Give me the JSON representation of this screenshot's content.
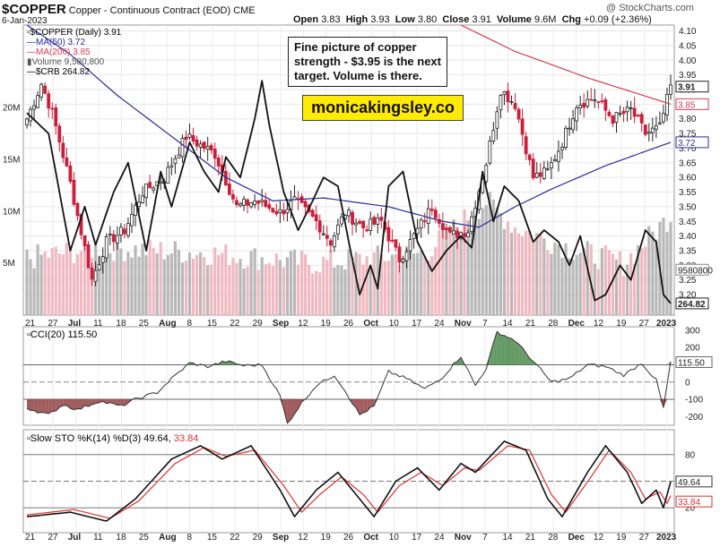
{
  "header": {
    "symbol": "$COPPER",
    "description": "Copper - Continuous Contract (EOD)",
    "exchange": "CME",
    "date": "6-Jan-2023",
    "ohlc": {
      "open": "3.83",
      "high": "3.93",
      "low": "3.80",
      "close": "3.91",
      "volume": "9.6M",
      "chg": "+0.09 (+2.36%)"
    },
    "labels": {
      "open": "Open",
      "high": "High",
      "low": "Low",
      "close": "Close",
      "volume": "Volume",
      "chg": "Chg"
    },
    "watermark": "@ StockCharts.com"
  },
  "annotations": {
    "note": "Fine picture of copper strength - $3.95 is the next target. Volume is there.",
    "site": "monicakingsley.co"
  },
  "legend": {
    "price": "$COPPER (Daily) 3.91",
    "ma50": "MA(50) 3.72",
    "ma200": "MA(200) 3.85",
    "volume": "Volume 9,580,800",
    "crb": "$CRB 264.82"
  },
  "colors": {
    "up": "#222222",
    "down": "#cc1f3a",
    "ma50": "#2b2b9a",
    "ma200": "#d63e4e",
    "crb": "#111111",
    "stoD": "#e03030",
    "cciFill": "#4b8a4b",
    "cciNeg": "#8a3535"
  },
  "chart_data": [
    {
      "type": "candlestick",
      "title": "$COPPER (Daily) 3.91",
      "ylim": [
        3.13,
        4.12
      ],
      "price_ticks": [
        "4.10",
        "4.05",
        "4.00",
        "3.95",
        "3.90",
        "3.85",
        "3.80",
        "3.75",
        "3.70",
        "3.65",
        "3.60",
        "3.55",
        "3.50",
        "3.45",
        "3.40",
        "3.35",
        "3.30",
        "3.25",
        "3.20"
      ],
      "volume_ticks": [
        "20M",
        "15M",
        "10M",
        "5M"
      ],
      "x_labels": [
        "21",
        "27",
        "Jul",
        "11",
        "18",
        "25",
        "Aug",
        "8",
        "15",
        "22",
        "29",
        "Sep",
        "12",
        "19",
        "26",
        "Oct",
        "10",
        "17",
        "24",
        "Nov",
        "7",
        "14",
        "21",
        "28",
        "Dec",
        "12",
        "19",
        "27",
        "2023"
      ],
      "tags": {
        "close": "3.91",
        "ma200": "3.85",
        "ma50": "3.72",
        "volume": "9580800",
        "crb": "264.82"
      },
      "waypoints": [
        {
          "i": 0,
          "p": 3.8
        },
        {
          "i": 4,
          "p": 3.92
        },
        {
          "i": 7,
          "p": 3.82
        },
        {
          "i": 12,
          "p": 3.58
        },
        {
          "i": 18,
          "p": 3.25
        },
        {
          "i": 22,
          "p": 3.38
        },
        {
          "i": 27,
          "p": 3.42
        },
        {
          "i": 32,
          "p": 3.55
        },
        {
          "i": 38,
          "p": 3.6
        },
        {
          "i": 44,
          "p": 3.74
        },
        {
          "i": 52,
          "p": 3.68
        },
        {
          "i": 58,
          "p": 3.5
        },
        {
          "i": 63,
          "p": 3.52
        },
        {
          "i": 70,
          "p": 3.48
        },
        {
          "i": 74,
          "p": 3.52
        },
        {
          "i": 80,
          "p": 3.45
        },
        {
          "i": 84,
          "p": 3.38
        },
        {
          "i": 88,
          "p": 3.48
        },
        {
          "i": 93,
          "p": 3.43
        },
        {
          "i": 98,
          "p": 3.45
        },
        {
          "i": 103,
          "p": 3.32
        },
        {
          "i": 108,
          "p": 3.42
        },
        {
          "i": 112,
          "p": 3.5
        },
        {
          "i": 117,
          "p": 3.4
        },
        {
          "i": 122,
          "p": 3.42
        },
        {
          "i": 127,
          "p": 3.65
        },
        {
          "i": 131,
          "p": 3.9
        },
        {
          "i": 135,
          "p": 3.85
        },
        {
          "i": 140,
          "p": 3.6
        },
        {
          "i": 144,
          "p": 3.62
        },
        {
          "i": 148,
          "p": 3.72
        },
        {
          "i": 152,
          "p": 3.85
        },
        {
          "i": 157,
          "p": 3.87
        },
        {
          "i": 162,
          "p": 3.8
        },
        {
          "i": 167,
          "p": 3.83
        },
        {
          "i": 171,
          "p": 3.75
        },
        {
          "i": 175,
          "p": 3.77
        },
        {
          "i": 178,
          "p": 3.91
        }
      ],
      "ma50_waypoints": [
        {
          "i": 0,
          "p": 4.12
        },
        {
          "i": 12,
          "p": 4.02
        },
        {
          "i": 25,
          "p": 3.88
        },
        {
          "i": 40,
          "p": 3.74
        },
        {
          "i": 55,
          "p": 3.6
        },
        {
          "i": 68,
          "p": 3.52
        },
        {
          "i": 82,
          "p": 3.53
        },
        {
          "i": 100,
          "p": 3.5
        },
        {
          "i": 115,
          "p": 3.45
        },
        {
          "i": 125,
          "p": 3.43
        },
        {
          "i": 135,
          "p": 3.5
        },
        {
          "i": 145,
          "p": 3.56
        },
        {
          "i": 160,
          "p": 3.64
        },
        {
          "i": 178,
          "p": 3.72
        }
      ],
      "ma200_waypoints": [
        {
          "i": 120,
          "p": 4.12
        },
        {
          "i": 135,
          "p": 4.03
        },
        {
          "i": 155,
          "p": 3.94
        },
        {
          "i": 178,
          "p": 3.85
        }
      ],
      "crb_waypoints": [
        {
          "i": 0,
          "p": 3.82
        },
        {
          "i": 6,
          "p": 3.75
        },
        {
          "i": 12,
          "p": 3.35
        },
        {
          "i": 16,
          "p": 3.5
        },
        {
          "i": 19,
          "p": 3.37
        },
        {
          "i": 24,
          "p": 3.55
        },
        {
          "i": 28,
          "p": 3.65
        },
        {
          "i": 33,
          "p": 3.35
        },
        {
          "i": 37,
          "p": 3.62
        },
        {
          "i": 40,
          "p": 3.5
        },
        {
          "i": 45,
          "p": 3.72
        },
        {
          "i": 49,
          "p": 3.62
        },
        {
          "i": 53,
          "p": 3.55
        },
        {
          "i": 55,
          "p": 3.67
        },
        {
          "i": 59,
          "p": 3.6
        },
        {
          "i": 63,
          "p": 3.8
        },
        {
          "i": 65,
          "p": 3.93
        },
        {
          "i": 67,
          "p": 3.78
        },
        {
          "i": 71,
          "p": 3.55
        },
        {
          "i": 75,
          "p": 3.42
        },
        {
          "i": 79,
          "p": 3.52
        },
        {
          "i": 82,
          "p": 3.6
        },
        {
          "i": 86,
          "p": 3.57
        },
        {
          "i": 89,
          "p": 3.38
        },
        {
          "i": 92,
          "p": 3.2
        },
        {
          "i": 95,
          "p": 3.3
        },
        {
          "i": 97,
          "p": 3.22
        },
        {
          "i": 100,
          "p": 3.57
        },
        {
          "i": 104,
          "p": 3.62
        },
        {
          "i": 108,
          "p": 3.38
        },
        {
          "i": 112,
          "p": 3.28
        },
        {
          "i": 116,
          "p": 3.35
        },
        {
          "i": 120,
          "p": 3.4
        },
        {
          "i": 123,
          "p": 3.36
        },
        {
          "i": 126,
          "p": 3.62
        },
        {
          "i": 129,
          "p": 3.45
        },
        {
          "i": 132,
          "p": 3.57
        },
        {
          "i": 136,
          "p": 3.52
        },
        {
          "i": 140,
          "p": 3.38
        },
        {
          "i": 143,
          "p": 3.42
        },
        {
          "i": 147,
          "p": 3.38
        },
        {
          "i": 150,
          "p": 3.3
        },
        {
          "i": 153,
          "p": 3.4
        },
        {
          "i": 157,
          "p": 3.18
        },
        {
          "i": 160,
          "p": 3.2
        },
        {
          "i": 164,
          "p": 3.3
        },
        {
          "i": 167,
          "p": 3.25
        },
        {
          "i": 171,
          "p": 3.42
        },
        {
          "i": 174,
          "p": 3.38
        },
        {
          "i": 176,
          "p": 3.2
        },
        {
          "i": 178,
          "p": 3.17
        }
      ],
      "volume_waypoints": [
        {
          "i": 0,
          "v": 5.5
        },
        {
          "i": 20,
          "v": 6.5
        },
        {
          "i": 50,
          "v": 6
        },
        {
          "i": 80,
          "v": 5
        },
        {
          "i": 110,
          "v": 6
        },
        {
          "i": 127,
          "v": 11
        },
        {
          "i": 135,
          "v": 8.5
        },
        {
          "i": 150,
          "v": 6.5
        },
        {
          "i": 165,
          "v": 5
        },
        {
          "i": 178,
          "v": 9.6
        }
      ]
    },
    {
      "type": "line",
      "title": "CCI(20) 115.50",
      "ylim": [
        -250,
        320
      ],
      "ticks": [
        "300",
        "200",
        "100",
        "0",
        "-100",
        "-200"
      ],
      "last_value": "115.50",
      "reference_lines": [
        100,
        0,
        -100
      ],
      "waypoints": [
        {
          "i": 0,
          "v": -150
        },
        {
          "i": 6,
          "v": -190
        },
        {
          "i": 10,
          "v": -130
        },
        {
          "i": 14,
          "v": -160
        },
        {
          "i": 20,
          "v": -110
        },
        {
          "i": 26,
          "v": -140
        },
        {
          "i": 30,
          "v": -100
        },
        {
          "i": 36,
          "v": -60
        },
        {
          "i": 40,
          "v": 20
        },
        {
          "i": 45,
          "v": 110
        },
        {
          "i": 50,
          "v": 90
        },
        {
          "i": 55,
          "v": 120
        },
        {
          "i": 60,
          "v": 95
        },
        {
          "i": 65,
          "v": 100
        },
        {
          "i": 70,
          "v": -80
        },
        {
          "i": 72,
          "v": -240
        },
        {
          "i": 76,
          "v": -120
        },
        {
          "i": 80,
          "v": -20
        },
        {
          "i": 85,
          "v": 40
        },
        {
          "i": 88,
          "v": -50
        },
        {
          "i": 92,
          "v": -190
        },
        {
          "i": 96,
          "v": -140
        },
        {
          "i": 100,
          "v": 60
        },
        {
          "i": 105,
          "v": 20
        },
        {
          "i": 110,
          "v": -40
        },
        {
          "i": 115,
          "v": 30
        },
        {
          "i": 120,
          "v": 150
        },
        {
          "i": 124,
          "v": -20
        },
        {
          "i": 127,
          "v": 80
        },
        {
          "i": 130,
          "v": 290
        },
        {
          "i": 135,
          "v": 240
        },
        {
          "i": 140,
          "v": 120
        },
        {
          "i": 145,
          "v": 0
        },
        {
          "i": 150,
          "v": 20
        },
        {
          "i": 155,
          "v": 100
        },
        {
          "i": 160,
          "v": 90
        },
        {
          "i": 165,
          "v": 40
        },
        {
          "i": 170,
          "v": 110
        },
        {
          "i": 174,
          "v": 10
        },
        {
          "i": 176,
          "v": -150
        },
        {
          "i": 178,
          "v": 115
        }
      ]
    },
    {
      "type": "line",
      "title": "Slow STO %K(14) %D(3) 49.64, 33.84",
      "ylim": [
        0,
        100
      ],
      "ticks": [
        "80",
        "20"
      ],
      "k_value": "49.64",
      "d_value": "33.84",
      "reference_lines": [
        80,
        50,
        20
      ],
      "k_waypoints": [
        {
          "i": 0,
          "v": 10
        },
        {
          "i": 12,
          "v": 15
        },
        {
          "i": 22,
          "v": 5
        },
        {
          "i": 30,
          "v": 30
        },
        {
          "i": 40,
          "v": 75
        },
        {
          "i": 48,
          "v": 90
        },
        {
          "i": 54,
          "v": 75
        },
        {
          "i": 62,
          "v": 90
        },
        {
          "i": 70,
          "v": 40
        },
        {
          "i": 74,
          "v": 10
        },
        {
          "i": 80,
          "v": 40
        },
        {
          "i": 86,
          "v": 60
        },
        {
          "i": 92,
          "v": 30
        },
        {
          "i": 96,
          "v": 10
        },
        {
          "i": 102,
          "v": 50
        },
        {
          "i": 108,
          "v": 65
        },
        {
          "i": 114,
          "v": 40
        },
        {
          "i": 120,
          "v": 70
        },
        {
          "i": 124,
          "v": 60
        },
        {
          "i": 132,
          "v": 95
        },
        {
          "i": 138,
          "v": 85
        },
        {
          "i": 144,
          "v": 30
        },
        {
          "i": 148,
          "v": 10
        },
        {
          "i": 155,
          "v": 60
        },
        {
          "i": 160,
          "v": 90
        },
        {
          "i": 166,
          "v": 60
        },
        {
          "i": 170,
          "v": 25
        },
        {
          "i": 174,
          "v": 40
        },
        {
          "i": 176,
          "v": 20
        },
        {
          "i": 178,
          "v": 49.64
        }
      ],
      "d_waypoints": [
        {
          "i": 0,
          "v": 12
        },
        {
          "i": 13,
          "v": 18
        },
        {
          "i": 23,
          "v": 8
        },
        {
          "i": 31,
          "v": 28
        },
        {
          "i": 41,
          "v": 70
        },
        {
          "i": 49,
          "v": 88
        },
        {
          "i": 55,
          "v": 78
        },
        {
          "i": 63,
          "v": 85
        },
        {
          "i": 71,
          "v": 45
        },
        {
          "i": 76,
          "v": 15
        },
        {
          "i": 81,
          "v": 35
        },
        {
          "i": 87,
          "v": 55
        },
        {
          "i": 93,
          "v": 35
        },
        {
          "i": 97,
          "v": 15
        },
        {
          "i": 103,
          "v": 45
        },
        {
          "i": 109,
          "v": 60
        },
        {
          "i": 115,
          "v": 45
        },
        {
          "i": 121,
          "v": 65
        },
        {
          "i": 125,
          "v": 62
        },
        {
          "i": 133,
          "v": 90
        },
        {
          "i": 139,
          "v": 85
        },
        {
          "i": 145,
          "v": 35
        },
        {
          "i": 149,
          "v": 15
        },
        {
          "i": 156,
          "v": 55
        },
        {
          "i": 161,
          "v": 85
        },
        {
          "i": 167,
          "v": 60
        },
        {
          "i": 171,
          "v": 30
        },
        {
          "i": 175,
          "v": 38
        },
        {
          "i": 177,
          "v": 25
        },
        {
          "i": 178,
          "v": 33.84
        }
      ]
    }
  ]
}
